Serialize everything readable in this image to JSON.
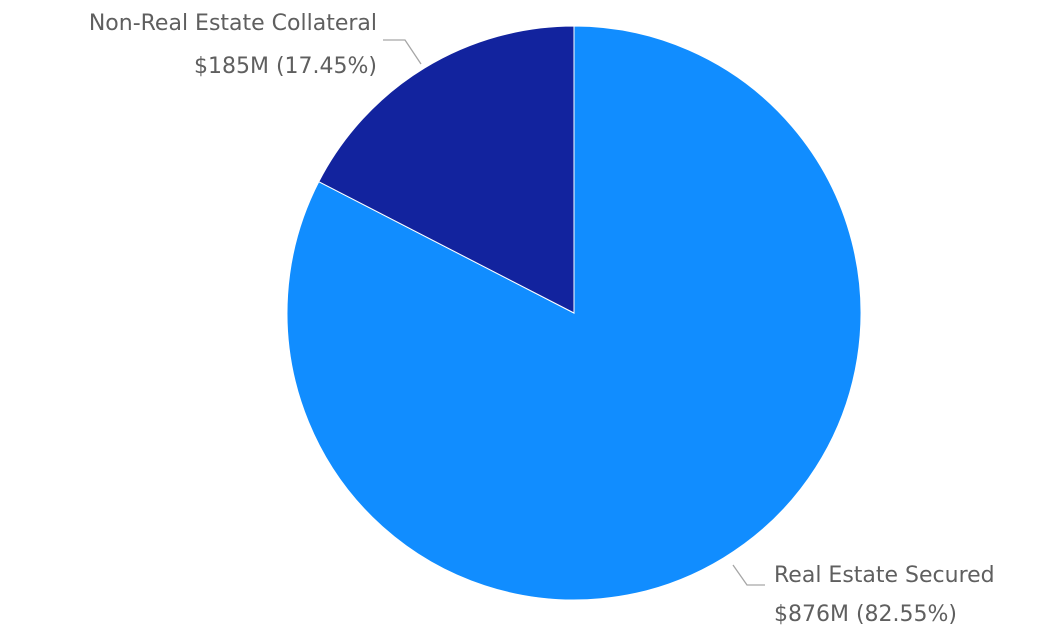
{
  "chart_data": {
    "type": "pie",
    "slices": [
      {
        "name": "Real Estate Secured",
        "value_label": "$876M (82.55%)",
        "value": 876,
        "percent": 82.55,
        "color": "#118dff"
      },
      {
        "name": "Non-Real Estate Collateral",
        "value_label": "$185M (17.45%)",
        "value": 185,
        "percent": 17.45,
        "color": "#12239e"
      }
    ],
    "start_angle": "12 o'clock",
    "direction": "clockwise",
    "label_color": "#5f5f5f",
    "leader_color": "#a6a6a6"
  }
}
